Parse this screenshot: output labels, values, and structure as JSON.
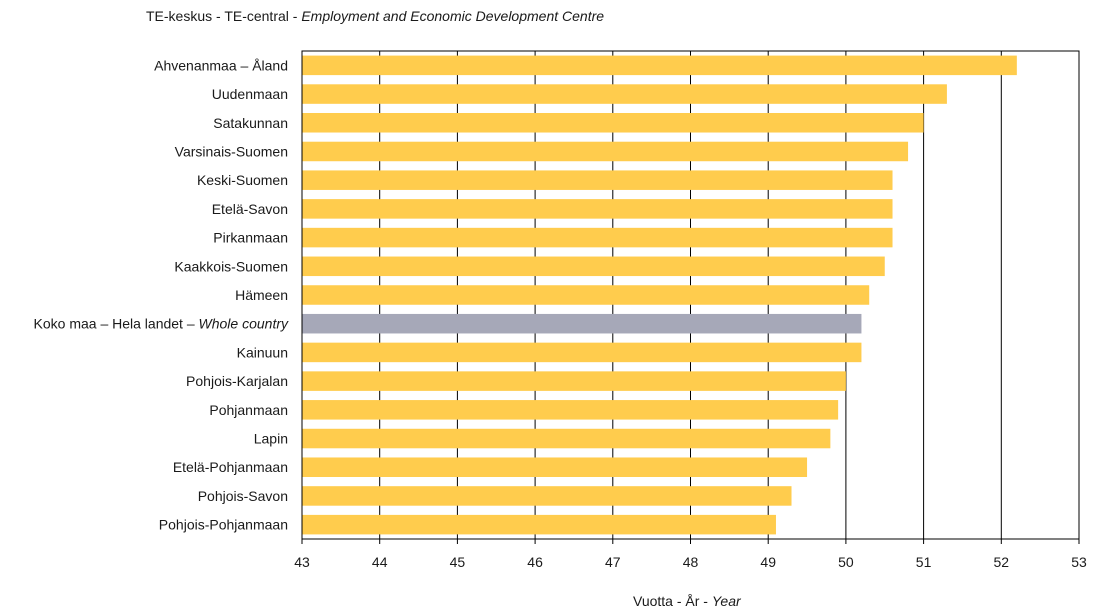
{
  "chart_data": {
    "type": "bar",
    "orientation": "horizontal",
    "header": {
      "prefix": "TE-keskus - TE-central - ",
      "italic": "Employment and Economic Development Centre"
    },
    "xlabel": {
      "prefix": "Vuotta - År - ",
      "italic": "Year"
    },
    "xlim": [
      43,
      53
    ],
    "xticks": [
      43,
      44,
      45,
      46,
      47,
      48,
      49,
      50,
      51,
      52,
      53
    ],
    "grid": "vertical",
    "colors": {
      "bar": "#FFCC4D",
      "highlight": "#A6A8B8",
      "grid": "#000000"
    },
    "categories": [
      {
        "label": "Ahvenanmaa – Åland",
        "value": 52.2
      },
      {
        "label": "Uudenmaan",
        "value": 51.3
      },
      {
        "label": "Satakunnan",
        "value": 51.0
      },
      {
        "label": "Varsinais-Suomen",
        "value": 50.8
      },
      {
        "label": "Keski-Suomen",
        "value": 50.6
      },
      {
        "label": "Etelä-Savon",
        "value": 50.6
      },
      {
        "label": "Pirkanmaan",
        "value": 50.6
      },
      {
        "label": "Kaakkois-Suomen",
        "value": 50.5
      },
      {
        "label": "Hämeen",
        "value": 50.3
      },
      {
        "label": "Koko maa – Hela landet – ",
        "label_italic": "Whole country",
        "value": 50.2,
        "highlight": true
      },
      {
        "label": "Kainuun",
        "value": 50.2
      },
      {
        "label": "Pohjois-Karjalan",
        "value": 50.0
      },
      {
        "label": "Pohjanmaan",
        "value": 49.9
      },
      {
        "label": "Lapin",
        "value": 49.8
      },
      {
        "label": "Etelä-Pohjanmaan",
        "value": 49.5
      },
      {
        "label": "Pohjois-Savon",
        "value": 49.3
      },
      {
        "label": "Pohjois-Pohjanmaan",
        "value": 49.1
      }
    ]
  }
}
